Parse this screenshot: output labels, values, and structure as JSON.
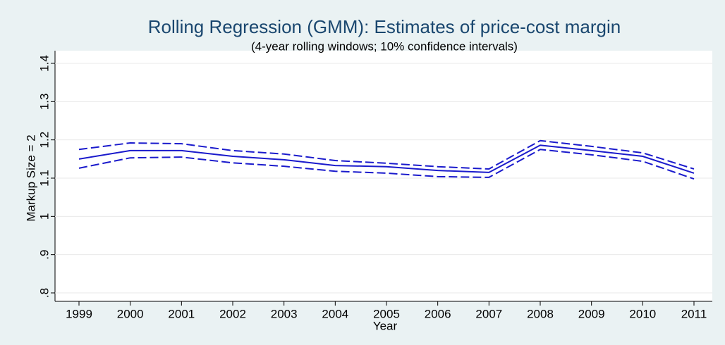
{
  "chart_data": {
    "type": "line",
    "title": "Rolling Regression (GMM): Estimates of price-cost margin",
    "subtitle": "(4-year rolling windows; 10% confidence intervals)",
    "x_label": "Year",
    "y_label": "Markup Size = 2",
    "x": [
      1999,
      2000,
      2001,
      2002,
      2003,
      2004,
      2005,
      2006,
      2007,
      2008,
      2009,
      2010,
      2011
    ],
    "series": [
      {
        "color": "#1a1acc",
        "dashed": false,
        "values": [
          1.15,
          1.172,
          1.172,
          1.157,
          1.148,
          1.133,
          1.13,
          1.12,
          1.115,
          1.186,
          1.172,
          1.157,
          1.113
        ]
      },
      {
        "color": "#1a1acc",
        "dashed": true,
        "values": [
          1.175,
          1.192,
          1.19,
          1.172,
          1.163,
          1.146,
          1.139,
          1.13,
          1.124,
          1.198,
          1.183,
          1.166,
          1.124
        ]
      },
      {
        "color": "#1a1acc",
        "dashed": true,
        "values": [
          1.126,
          1.153,
          1.155,
          1.14,
          1.131,
          1.118,
          1.113,
          1.104,
          1.102,
          1.175,
          1.161,
          1.144,
          1.098
        ]
      }
    ],
    "xlim": [
      1999,
      2011
    ],
    "xticks": [
      1999,
      2000,
      2001,
      2002,
      2003,
      2004,
      2005,
      2006,
      2007,
      2008,
      2009,
      2010,
      2011
    ],
    "ylim": [
      0.8,
      1.4
    ],
    "yticks": [
      {
        "value": 0.8,
        "label": ".8"
      },
      {
        "value": 0.9,
        "label": ".9"
      },
      1,
      1.1,
      1.2,
      1.3,
      1.4
    ],
    "grid": true
  }
}
